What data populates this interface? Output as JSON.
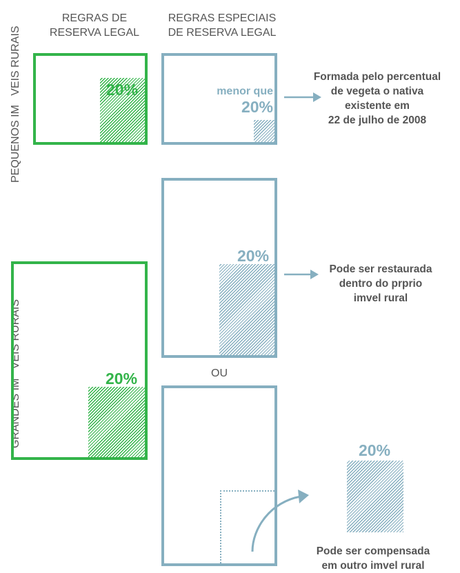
{
  "colors": {
    "green": "#33b44a",
    "blue": "#86afc0",
    "text": "#555555"
  },
  "headers": {
    "regras": "REGRAS DE\nRESERVA LEGAL",
    "especiais": "REGRAS ESPECIAIS\nDE RESERVA LEGAL"
  },
  "row_labels": {
    "pequenos": "PEQUENOS IM   VEIS RURAIS",
    "grandes": "GRANDES IM   VEIS RURAIS"
  },
  "pequenos": {
    "regra_pct": "20%",
    "especial_prefix": "menor que",
    "especial_pct": "20%",
    "note": "Formada pelo percentual\nde vegeta    o nativa\nexistente em\n22 de julho de 2008"
  },
  "grandes": {
    "regra_pct": "20%",
    "restaurada_pct": "20%",
    "restaurada_note": "Pode ser restaurada\ndentro do prprio\nimvel rural",
    "ou": "OU",
    "compensada_pct": "20%",
    "compensada_note": "Pode ser compensada\nem outro imvel rural"
  }
}
